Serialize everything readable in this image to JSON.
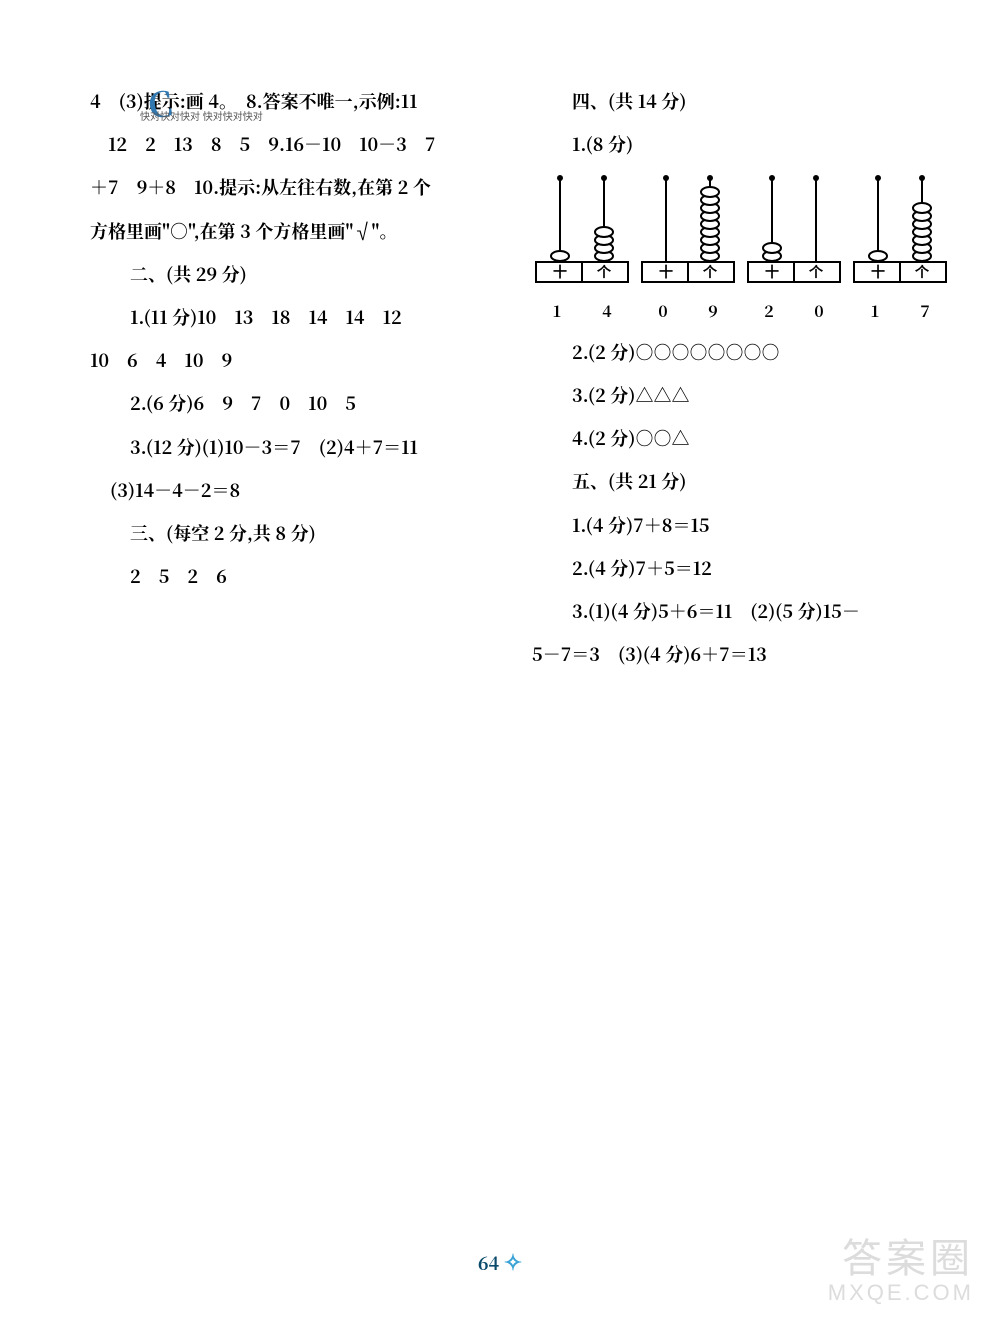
{
  "left": {
    "l1": "4　(3)提示:画 4。　8.答案不唯一,示例:11",
    "l2": "　12　2　13　8　5　9.16－10　10－3　7",
    "l3": "＋7　9＋8　10.提示:从左往右数,在第 2 个",
    "l4": "方格里画\"○\",在第 3 个方格里画\"√\"。",
    "s2": "二、(共 29 分)",
    "s2_1": "1.(11 分)10　13　18　14　14　12",
    "s2_1b": "10　6　4　10　9",
    "s2_2": "2.(6 分)6　9　7　0　10　5",
    "s2_3": "3.(12 分)(1)10－3＝7　(2)4＋7＝11",
    "s2_3b": "(3)14－4－2＝8",
    "s3": "三、(每空 2 分,共 8 分)",
    "s3_1": "2　5　2　6"
  },
  "right": {
    "s4": "四、(共 14 分)",
    "s4_1": "1.(8 分)",
    "s4_2": "2.(2 分)○○○○○○○○",
    "s4_3": "3.(2 分)△△△",
    "s4_4": "4.(2 分)○○△",
    "s5": "五、(共 21 分)",
    "s5_1": "1.(4 分)7＋8＝15",
    "s5_2": "2.(4 分)7＋5＝12",
    "s5_3": "3.(1)(4 分)5＋6＝11　(2)(5 分)15－",
    "s5_3b": "5－7＝3　(3)(4 分)6＋7＝13"
  },
  "abacus": [
    {
      "tens": 1,
      "ones": 4
    },
    {
      "tens": 0,
      "ones": 9
    },
    {
      "tens": 2,
      "ones": 0
    },
    {
      "tens": 1,
      "ones": 7
    }
  ],
  "abacus_labels": {
    "tens": "十",
    "ones": "个"
  },
  "footer": {
    "page": "64"
  },
  "watermark": {
    "line1": "答案圈",
    "line2": "MXQE.COM"
  },
  "tinywm": "快对快对快对\n快对快对快对",
  "colors": {
    "ink": "#000000",
    "footer": "#0a4a6a",
    "leaf": "#3aa3d6",
    "wm": "#dcdcdc",
    "pen": "#3278b0"
  }
}
